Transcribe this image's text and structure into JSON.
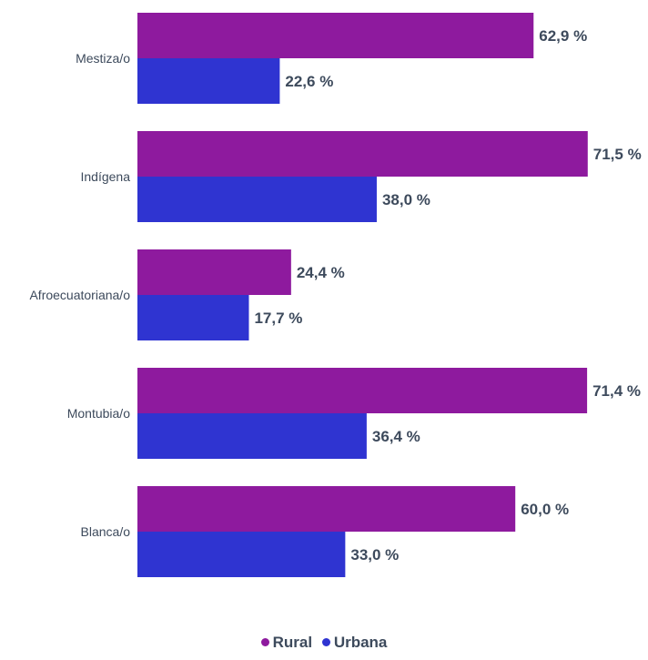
{
  "chart_data": {
    "type": "bar",
    "orientation": "horizontal",
    "title": "",
    "categories": [
      "Mestiza/o",
      "Indígena",
      "Afroecuatoriana/o",
      "Montubia/o",
      "Blanca/o"
    ],
    "series": [
      {
        "name": "Rural",
        "color": "#8e1a9e",
        "values": [
          62.9,
          71.5,
          24.4,
          71.4,
          60.0
        ],
        "labels": [
          "62,9 %",
          "71,5 %",
          "24,4 %",
          "71,4 %",
          "60,0 %"
        ]
      },
      {
        "name": "Urbana",
        "color": "#2f34d1",
        "values": [
          22.6,
          38.0,
          17.7,
          36.4,
          33.0
        ],
        "labels": [
          "22,6 %",
          "38,0 %",
          "17,7 %",
          "36,4 %",
          "33,0 %"
        ]
      }
    ],
    "xlim": [
      0,
      80
    ],
    "grid": false,
    "legend_position": "bottom"
  }
}
